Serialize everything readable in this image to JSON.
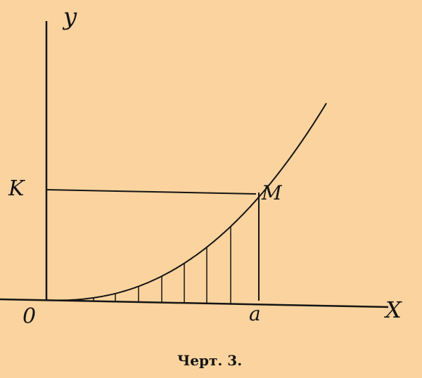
{
  "labels": {
    "y_axis": "y",
    "x_axis": "X",
    "origin": "0",
    "k_point": "K",
    "m_point": "M",
    "a_point": "a"
  },
  "caption": "Черт. 3.",
  "colors": {
    "background": "#fad39e",
    "ink": "#141414"
  }
}
